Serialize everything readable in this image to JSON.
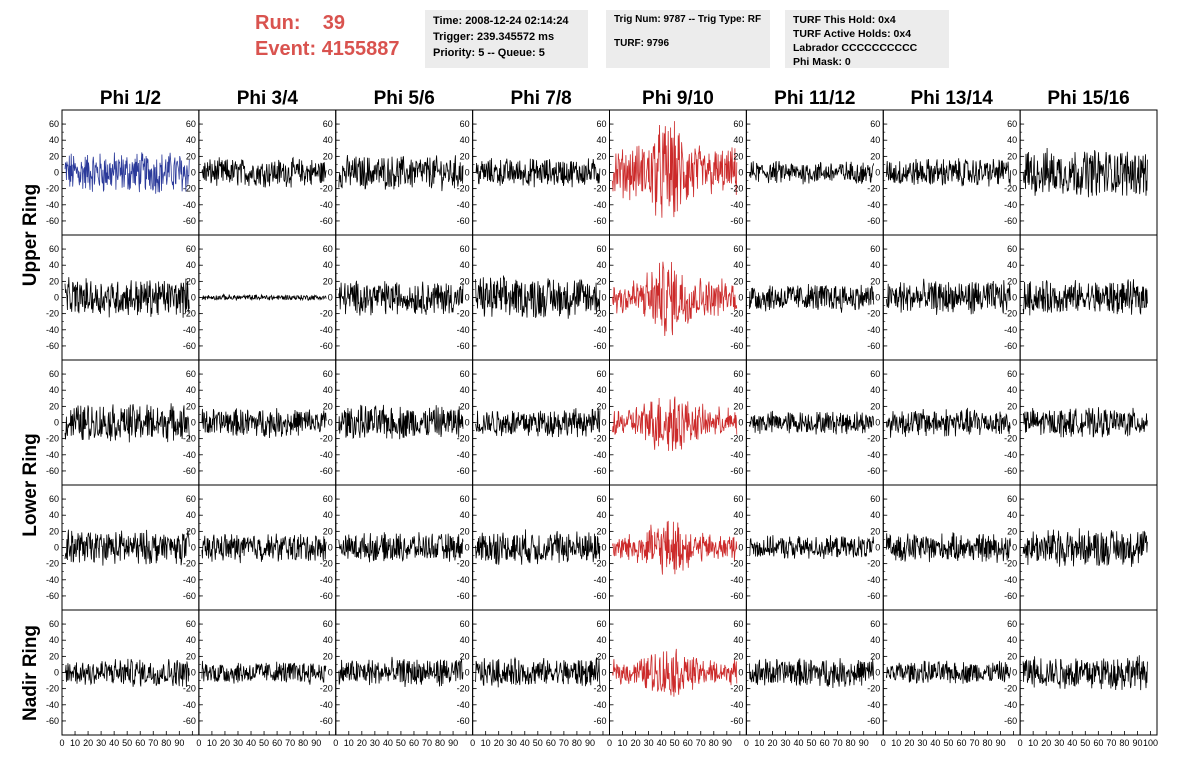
{
  "run": {
    "run_label": "Run:",
    "run_value": "39",
    "event_label": "Event:",
    "event_value": "4155887"
  },
  "info1": {
    "time": "Time: 2008-12-24 02:14:24",
    "trigger": "Trigger: 239.345572 ms",
    "priority": "Priority: 5 -- Queue: 5"
  },
  "info2": {
    "trig": "Trig Num: 9787 -- Trig Type: RF",
    "turf": "TURF: 9796"
  },
  "info3": {
    "this_hold": "TURF This Hold: 0x4",
    "active_holds": "TURF Active Holds: 0x4",
    "labrador": "Labrador CCCCCCCCCC",
    "phi_mask": "Phi Mask: 0"
  },
  "columns": [
    "Phi 1/2",
    "Phi 3/4",
    "Phi 5/6",
    "Phi 7/8",
    "Phi 9/10",
    "Phi 11/12",
    "Phi 13/14",
    "Phi 15/16"
  ],
  "rings": [
    "Upper Ring",
    "Lower Ring",
    "Nadir Ring"
  ],
  "colors": {
    "normal": "#000000",
    "triggered": "#cc2a2a",
    "highlight": "#2b3a9a",
    "label_red": "#d9534f",
    "box_bg": "#ececec"
  },
  "chart_data": {
    "type": "line",
    "rows": 5,
    "cols": 8,
    "ylim": [
      -70,
      70
    ],
    "xlim": [
      0,
      100
    ],
    "y_ticks": [
      -60,
      -40,
      -20,
      0,
      20,
      40,
      60
    ],
    "x_ticks": [
      "0",
      "10",
      "20",
      "30",
      "40",
      "50",
      "60",
      "70",
      "80",
      "90",
      "100"
    ],
    "highlight_panels": [
      {
        "row": 0,
        "col": 0,
        "color": "highlight"
      }
    ],
    "triggered_column": 4,
    "amplitudes": [
      [
        22,
        15,
        18,
        15,
        40,
        12,
        15,
        25
      ],
      [
        20,
        3,
        18,
        22,
        30,
        15,
        18,
        18
      ],
      [
        20,
        15,
        18,
        15,
        25,
        12,
        15,
        15
      ],
      [
        18,
        15,
        15,
        18,
        22,
        12,
        15,
        20
      ],
      [
        15,
        12,
        15,
        15,
        20,
        15,
        12,
        18
      ]
    ]
  }
}
